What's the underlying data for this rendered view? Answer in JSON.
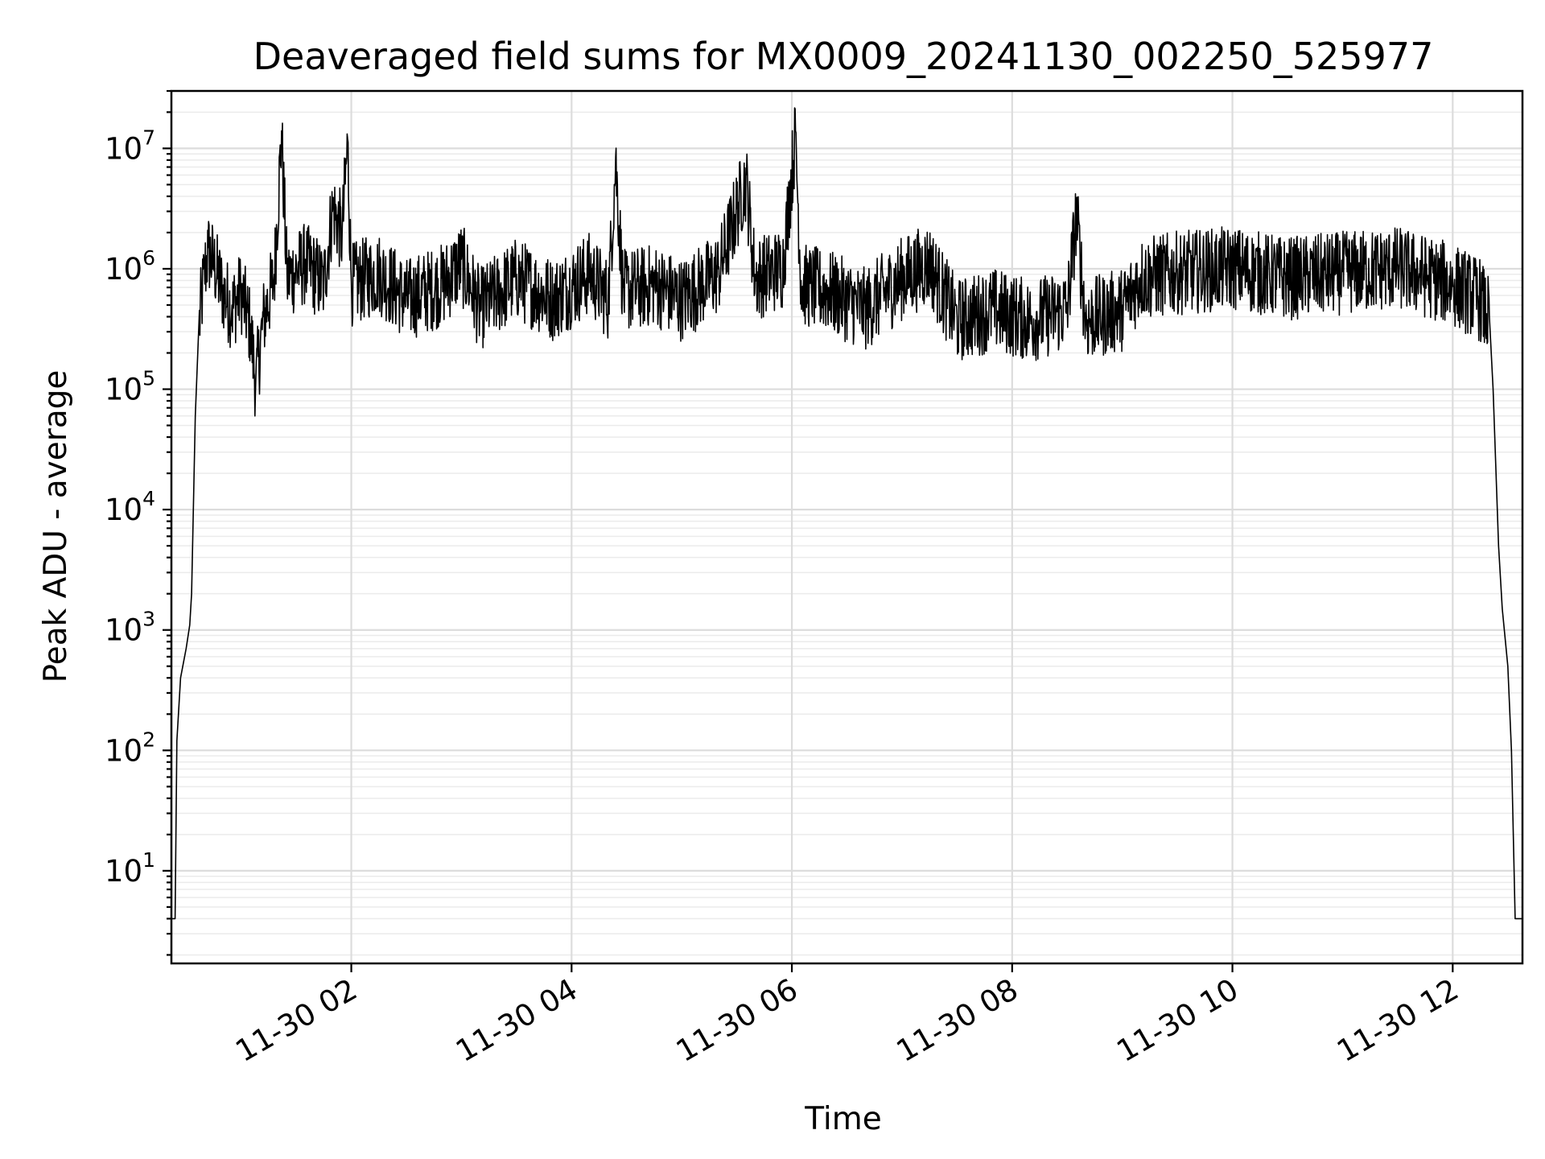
{
  "chart_data": {
    "type": "line",
    "title": "Deaveraged field sums for MX0009_20241130_002250_525977",
    "xlabel": "Time",
    "ylabel": "Peak ADU - average",
    "x_range": [
      "2024-11-30 00:22",
      "2024-11-30 12:38"
    ],
    "y_scale": "log",
    "ylim": [
      1.7,
      30000000
    ],
    "grid": true,
    "x_ticks": [
      {
        "value": "2024-11-30 02:00",
        "label": "11-30 02"
      },
      {
        "value": "2024-11-30 04:00",
        "label": "11-30 04"
      },
      {
        "value": "2024-11-30 06:00",
        "label": "11-30 06"
      },
      {
        "value": "2024-11-30 08:00",
        "label": "11-30 08"
      },
      {
        "value": "2024-11-30 10:00",
        "label": "11-30 10"
      },
      {
        "value": "2024-11-30 12:00",
        "label": "11-30 12"
      }
    ],
    "y_ticks": [
      {
        "value": 10,
        "base": "10",
        "exp": "1"
      },
      {
        "value": 100,
        "base": "10",
        "exp": "2"
      },
      {
        "value": 1000,
        "base": "10",
        "exp": "3"
      },
      {
        "value": 10000,
        "base": "10",
        "exp": "4"
      },
      {
        "value": 100000,
        "base": "10",
        "exp": "5"
      },
      {
        "value": 1000000,
        "base": "10",
        "exp": "6"
      },
      {
        "value": 10000000,
        "base": "10",
        "exp": "7"
      }
    ],
    "series": [
      {
        "color": "#000000",
        "points": [
          [
            "2024-11-30 00:22",
            4
          ],
          [
            "2024-11-30 00:24",
            4
          ],
          [
            "2024-11-30 00:25",
            120
          ],
          [
            "2024-11-30 00:27",
            400
          ],
          [
            "2024-11-30 00:30",
            700
          ],
          [
            "2024-11-30 00:32",
            1100
          ],
          [
            "2024-11-30 00:33",
            2000
          ],
          [
            "2024-11-30 00:35",
            60000
          ],
          [
            "2024-11-30 00:37",
            350000
          ],
          [
            "2024-11-30 00:40",
            1000000
          ],
          [
            "2024-11-30 00:42",
            1500000
          ],
          [
            "2024-11-30 00:45",
            1200000
          ],
          [
            "2024-11-30 00:50",
            700000
          ],
          [
            "2024-11-30 00:55",
            500000
          ],
          [
            "2024-11-30 01:00",
            700000
          ],
          [
            "2024-11-30 01:05",
            350000
          ],
          [
            "2024-11-30 01:08",
            120000
          ],
          [
            "2024-11-30 01:12",
            400000
          ],
          [
            "2024-11-30 01:18",
            900000
          ],
          [
            "2024-11-30 01:22",
            14000000
          ],
          [
            "2024-11-30 01:25",
            900000
          ],
          [
            "2024-11-30 01:35",
            1200000
          ],
          [
            "2024-11-30 01:45",
            800000
          ],
          [
            "2024-11-30 01:50",
            3500000
          ],
          [
            "2024-11-30 01:55",
            2000000
          ],
          [
            "2024-11-30 01:58",
            12000000
          ],
          [
            "2024-11-30 02:00",
            800000
          ],
          [
            "2024-11-30 02:15",
            1000000
          ],
          [
            "2024-11-30 02:30",
            600000
          ],
          [
            "2024-11-30 02:50",
            800000
          ],
          [
            "2024-11-30 03:00",
            1200000
          ],
          [
            "2024-11-30 03:10",
            500000
          ],
          [
            "2024-11-30 03:30",
            900000
          ],
          [
            "2024-11-30 03:50",
            600000
          ],
          [
            "2024-11-30 04:10",
            1000000
          ],
          [
            "2024-11-30 04:20",
            600000
          ],
          [
            "2024-11-30 04:24",
            8500000
          ],
          [
            "2024-11-30 04:28",
            700000
          ],
          [
            "2024-11-30 04:45",
            800000
          ],
          [
            "2024-11-30 05:00",
            600000
          ],
          [
            "2024-11-30 05:20",
            1000000
          ],
          [
            "2024-11-30 05:35",
            6000000
          ],
          [
            "2024-11-30 05:40",
            900000
          ],
          [
            "2024-11-30 05:55",
            1100000
          ],
          [
            "2024-11-30 06:02",
            14000000
          ],
          [
            "2024-11-30 06:05",
            800000
          ],
          [
            "2024-11-30 06:20",
            700000
          ],
          [
            "2024-11-30 06:40",
            500000
          ],
          [
            "2024-11-30 07:00",
            900000
          ],
          [
            "2024-11-30 07:15",
            1200000
          ],
          [
            "2024-11-30 07:20",
            800000
          ],
          [
            "2024-11-30 07:30",
            400000
          ],
          [
            "2024-11-30 07:50",
            500000
          ],
          [
            "2024-11-30 08:10",
            400000
          ],
          [
            "2024-11-30 08:30",
            500000
          ],
          [
            "2024-11-30 08:35",
            3000000
          ],
          [
            "2024-11-30 08:40",
            400000
          ],
          [
            "2024-11-30 09:00",
            500000
          ],
          [
            "2024-11-30 09:10",
            900000
          ],
          [
            "2024-11-30 09:30",
            1000000
          ],
          [
            "2024-11-30 10:00",
            1100000
          ],
          [
            "2024-11-30 10:30",
            900000
          ],
          [
            "2024-11-30 11:00",
            1000000
          ],
          [
            "2024-11-30 11:30",
            1100000
          ],
          [
            "2024-11-30 12:00",
            800000
          ],
          [
            "2024-11-30 12:15",
            600000
          ],
          [
            "2024-11-30 12:20",
            400000
          ],
          [
            "2024-11-30 12:22",
            100000
          ],
          [
            "2024-11-30 12:25",
            5000
          ],
          [
            "2024-11-30 12:27",
            1500
          ],
          [
            "2024-11-30 12:30",
            500
          ],
          [
            "2024-11-30 12:32",
            100
          ],
          [
            "2024-11-30 12:34",
            4
          ],
          [
            "2024-11-30 12:38",
            4
          ]
        ]
      }
    ]
  }
}
